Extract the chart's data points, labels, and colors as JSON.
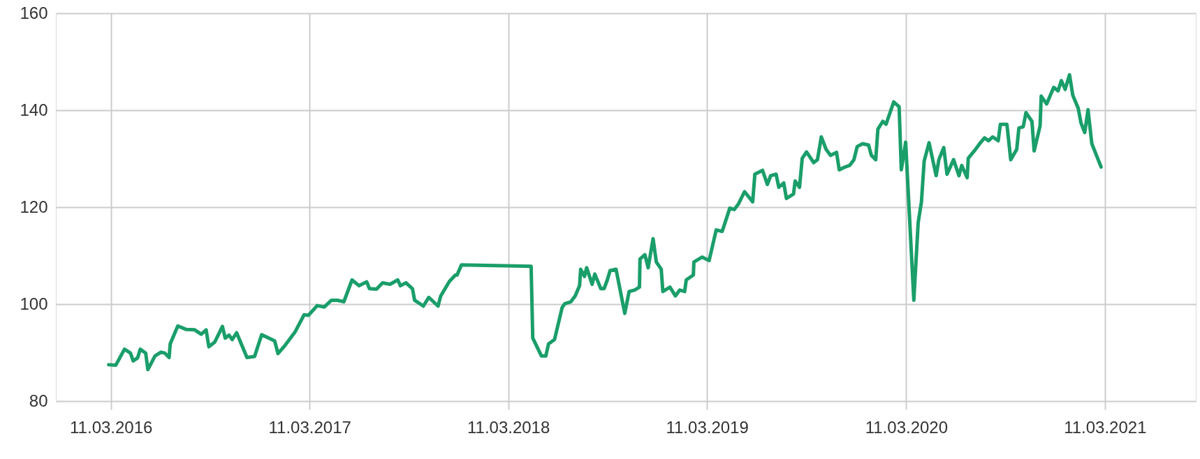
{
  "chart_data": {
    "type": "line",
    "xlim": [
      "2015-12-01",
      "2021-08-25"
    ],
    "xticks": [
      {
        "value": "2016-03-11",
        "label": "11.03.2016"
      },
      {
        "value": "2017-03-11",
        "label": "11.03.2017"
      },
      {
        "value": "2018-03-11",
        "label": "11.03.2018"
      },
      {
        "value": "2019-03-11",
        "label": "11.03.2019"
      },
      {
        "value": "2020-03-11",
        "label": "11.03.2020"
      },
      {
        "value": "2021-03-11",
        "label": "11.03.2021"
      }
    ],
    "ylim": [
      80,
      160
    ],
    "yticks": [
      80,
      100,
      120,
      140,
      160
    ],
    "grid": true,
    "marker": "none",
    "line_style": "solid",
    "series": [
      {
        "color": "#1a9e6a",
        "x": [
          "2016-03-07",
          "2016-03-20",
          "2016-04-05",
          "2016-04-16",
          "2016-04-21",
          "2016-04-29",
          "2016-05-04",
          "2016-05-14",
          "2016-05-18",
          "2016-05-31",
          "2016-06-11",
          "2016-06-18",
          "2016-06-26",
          "2016-06-28",
          "2016-07-12",
          "2016-07-27",
          "2016-08-12",
          "2016-08-24",
          "2016-09-02",
          "2016-09-07",
          "2016-09-18",
          "2016-10-02",
          "2016-10-07",
          "2016-10-14",
          "2016-10-20",
          "2016-10-28",
          "2016-11-16",
          "2016-11-30",
          "2016-12-13",
          "2017-01-06",
          "2017-01-12",
          "2017-01-25",
          "2017-02-12",
          "2017-03-01",
          "2017-03-09",
          "2017-03-25",
          "2017-04-07",
          "2017-04-20",
          "2017-05-01",
          "2017-05-13",
          "2017-05-28",
          "2017-06-10",
          "2017-06-24",
          "2017-06-29",
          "2017-07-12",
          "2017-07-23",
          "2017-08-06",
          "2017-08-20",
          "2017-08-25",
          "2017-09-04",
          "2017-09-16",
          "2017-09-20",
          "2017-10-06",
          "2017-10-16",
          "2017-11-02",
          "2017-11-07",
          "2017-11-23",
          "2017-12-04",
          "2017-12-07",
          "2017-12-15",
          "2018-04-22",
          "2018-04-25",
          "2018-05-11",
          "2018-05-19",
          "2018-05-24",
          "2018-06-04",
          "2018-06-18",
          "2018-06-23",
          "2018-07-04",
          "2018-07-12",
          "2018-07-20",
          "2018-07-22",
          "2018-07-29",
          "2018-08-02",
          "2018-08-12",
          "2018-08-17",
          "2018-08-28",
          "2018-09-03",
          "2018-09-09",
          "2018-09-14",
          "2018-09-25",
          "2018-10-11",
          "2018-10-19",
          "2018-10-29",
          "2018-11-07",
          "2018-11-08",
          "2018-11-17",
          "2018-11-23",
          "2018-12-02",
          "2018-12-08",
          "2018-12-17",
          "2018-12-20",
          "2019-01-02",
          "2019-01-12",
          "2019-01-20",
          "2019-01-29",
          "2019-02-01",
          "2019-02-14",
          "2019-02-15",
          "2019-03-02",
          "2019-03-15",
          "2019-03-28",
          "2019-04-08",
          "2019-04-22",
          "2019-04-30",
          "2019-05-08",
          "2019-05-19",
          "2019-06-03",
          "2019-06-07",
          "2019-06-21",
          "2019-06-30",
          "2019-07-06",
          "2019-07-16",
          "2019-07-21",
          "2019-07-30",
          "2019-08-04",
          "2019-08-17",
          "2019-08-20",
          "2019-08-28",
          "2019-09-02",
          "2019-09-10",
          "2019-09-23",
          "2019-09-30",
          "2019-10-07",
          "2019-10-16",
          "2019-10-24",
          "2019-11-04",
          "2019-11-09",
          "2019-11-20",
          "2019-11-28",
          "2019-12-06",
          "2019-12-12",
          "2019-12-22",
          "2020-01-02",
          "2020-01-07",
          "2020-01-15",
          "2020-01-19",
          "2020-01-28",
          "2020-02-03",
          "2020-02-17",
          "2020-02-27",
          "2020-03-02",
          "2020-03-10",
          "2020-03-25",
          "2020-04-02",
          "2020-04-08",
          "2020-04-13",
          "2020-04-22",
          "2020-05-05",
          "2020-05-10",
          "2020-05-19",
          "2020-05-25",
          "2020-06-06",
          "2020-06-16",
          "2020-06-21",
          "2020-07-01",
          "2020-07-03",
          "2020-07-14",
          "2020-07-24",
          "2020-08-02",
          "2020-08-09",
          "2020-08-17",
          "2020-08-27",
          "2020-08-31",
          "2020-09-12",
          "2020-09-19",
          "2020-09-30",
          "2020-10-04",
          "2020-10-12",
          "2020-10-17",
          "2020-10-28",
          "2020-11-01",
          "2020-11-12",
          "2020-11-14",
          "2020-11-24",
          "2020-12-07",
          "2020-12-15",
          "2020-12-21",
          "2020-12-28",
          "2021-01-05",
          "2021-01-11",
          "2021-01-21",
          "2021-01-26",
          "2021-02-02",
          "2021-02-08",
          "2021-02-15",
          "2021-03-04"
        ],
        "values": [
          87.5,
          87.4,
          90.7,
          89.9,
          88.3,
          88.9,
          90.7,
          89.9,
          86.5,
          89.3,
          90.1,
          89.9,
          89.0,
          91.8,
          95.5,
          94.8,
          94.7,
          93.8,
          94.7,
          91.2,
          92.2,
          95.4,
          93.0,
          93.6,
          92.7,
          94.1,
          89.0,
          89.2,
          93.7,
          92.4,
          89.8,
          91.5,
          94.2,
          97.8,
          97.7,
          99.7,
          99.4,
          100.8,
          100.8,
          100.5,
          105.0,
          103.8,
          104.6,
          103.2,
          103.1,
          104.4,
          104.1,
          105.0,
          103.8,
          104.4,
          103.2,
          100.8,
          99.6,
          101.4,
          99.6,
          101.7,
          104.7,
          106.0,
          106.0,
          108.1,
          107.8,
          93.0,
          89.3,
          89.3,
          91.8,
          92.7,
          99.3,
          100.1,
          100.5,
          101.7,
          103.8,
          107.2,
          105.7,
          107.5,
          104.1,
          106.2,
          103.2,
          103.2,
          105.0,
          106.9,
          107.2,
          98.1,
          102.6,
          102.9,
          103.5,
          109.3,
          110.2,
          107.5,
          113.5,
          108.7,
          107.2,
          102.6,
          103.5,
          101.7,
          102.9,
          102.6,
          105.0,
          106.0,
          108.7,
          109.7,
          109.0,
          115.3,
          115.0,
          119.8,
          119.5,
          120.7,
          123.2,
          121.1,
          126.8,
          127.6,
          124.7,
          126.5,
          126.8,
          124.1,
          125.0,
          121.8,
          122.7,
          125.4,
          124.1,
          130.1,
          131.4,
          129.2,
          129.8,
          134.5,
          131.9,
          130.7,
          131.3,
          127.7,
          128.3,
          128.6,
          129.8,
          132.5,
          133.1,
          132.8,
          130.7,
          129.8,
          136.1,
          137.7,
          137.1,
          141.7,
          140.7,
          127.7,
          133.4,
          100.8,
          116.8,
          121.1,
          129.5,
          133.3,
          126.5,
          129.8,
          132.3,
          126.8,
          129.8,
          126.5,
          128.6,
          126.1,
          130.1,
          131.6,
          133.1,
          134.3,
          133.7,
          134.5,
          133.7,
          137.1,
          137.1,
          129.8,
          131.9,
          136.3,
          136.6,
          139.5,
          137.7,
          131.6,
          136.8,
          142.9,
          141.3,
          144.7,
          144.0,
          146.1,
          144.3,
          147.3,
          143.1,
          140.4,
          137.4,
          135.4,
          140.1,
          133.1,
          128.3
        ]
      }
    ]
  }
}
